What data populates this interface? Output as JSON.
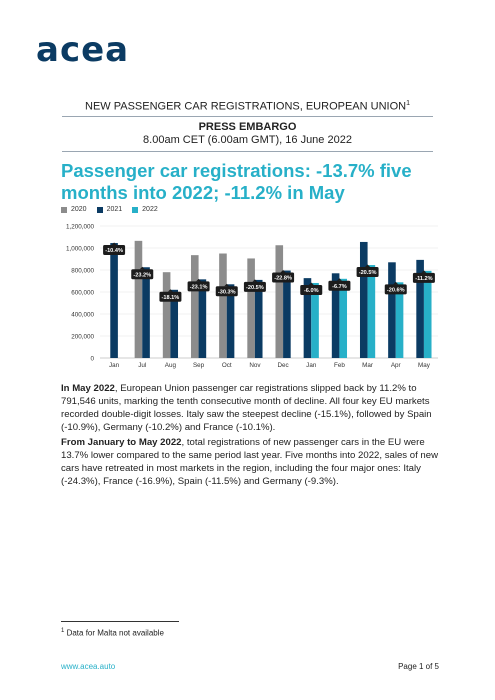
{
  "logo": {
    "text": "acea"
  },
  "header": {
    "title": "NEW PASSENGER CAR REGISTRATIONS, EUROPEAN UNION",
    "title_sup": "1",
    "embargo_title": "PRESS EMBARGO",
    "embargo_time": "8.00am CET (6.00am GMT), 16 June 2022"
  },
  "headline": "Passenger car registrations: -13.7% five months into 2022; -11.2% in May",
  "chart_data": {
    "type": "bar",
    "categories": [
      "Jan",
      "Jul",
      "Aug",
      "Sep",
      "Oct",
      "Nov",
      "Dec",
      "Jan",
      "Feb",
      "Mar",
      "Apr",
      "May"
    ],
    "series": [
      {
        "name": "2020",
        "color": "#8c8c8c",
        "values": [
          null,
          1065000,
          780000,
          935000,
          950000,
          905000,
          1025000,
          null,
          null,
          null,
          null,
          null
        ]
      },
      {
        "name": "2021",
        "color": "#0b3b63",
        "values": [
          1045000,
          825000,
          620000,
          715000,
          670000,
          710000,
          795000,
          726000,
          770000,
          1055000,
          870000,
          892000
        ]
      },
      {
        "name": "2022",
        "color": "#27b0c8",
        "values": [
          null,
          null,
          null,
          null,
          null,
          null,
          null,
          682000,
          720000,
          845000,
          688000,
          792000
        ]
      }
    ],
    "labels": [
      "-10.4%",
      "-23.2%",
      "-18.1%",
      "-23.1%",
      "-30.3%",
      "-20.5%",
      "-22.8%",
      "-6.0%",
      "-6.7%",
      "-20.5%",
      "-20.6%",
      "-11.2%"
    ],
    "yticks": [
      "0",
      "200,000",
      "400,000",
      "600,000",
      "800,000",
      "1,000,000",
      "1,200,000"
    ],
    "ylim": [
      0,
      1200000
    ],
    "legend_position": "top-left",
    "grid": true
  },
  "paragraphs": {
    "p1_bold": "In May 2022",
    "p1_text": ", European Union passenger car registrations slipped back by 11.2% to 791,546 units, marking the tenth consecutive month of decline. All four key EU markets recorded double-digit losses. Italy saw the steepest decline (-15.1%), followed by Spain (-10.9%), Germany (-10.2%) and France (-10.1%).",
    "p2_bold": "From January to May 2022",
    "p2_text": ", total registrations of new passenger cars in the EU were 13.7% lower compared to the same period last year. Five months into 2022, sales of new cars have retreated in most markets in the region, including the four major ones: Italy (-24.3%), France (-16.9%), Spain (-11.5%) and Germany (-9.3%)."
  },
  "footnote": {
    "marker": "1",
    "text": " Data for Malta not available"
  },
  "footer": {
    "url": "www.acea.auto",
    "page": "Page 1 of 5"
  }
}
